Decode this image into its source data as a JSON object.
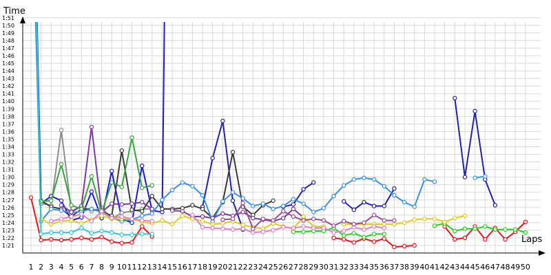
{
  "chart_data": {
    "type": "line",
    "ylabel": "Time",
    "xlabel": "Laps",
    "x": [
      1,
      2,
      3,
      4,
      5,
      6,
      7,
      8,
      9,
      10,
      11,
      12,
      13,
      14,
      15,
      16,
      17,
      18,
      19,
      20,
      21,
      22,
      23,
      24,
      25,
      26,
      27,
      28,
      29,
      30,
      31,
      32,
      33,
      34,
      35,
      36,
      37,
      38,
      39,
      40,
      41,
      42,
      43,
      44,
      45,
      46,
      47,
      48,
      49,
      50
    ],
    "y_ticks_seconds": [
      81,
      82,
      83,
      84,
      85,
      86,
      87,
      88,
      89,
      90,
      91,
      92,
      93,
      94,
      95,
      96,
      97,
      98,
      99,
      100,
      101,
      102,
      103,
      104,
      105,
      106,
      107,
      108,
      109,
      110,
      111
    ],
    "y_tick_labels": [
      "1:21",
      "1:22",
      "1:23",
      "1:24",
      "1:25",
      "1:26",
      "1:27",
      "1:28",
      "1:29",
      "1:30",
      "1:31",
      "1:32",
      "1:33",
      "1:34",
      "1:35",
      "1:36",
      "1:37",
      "1:38",
      "1:39",
      "1:40",
      "1:41",
      "1:42",
      "1:43",
      "1:44",
      "1:45",
      "1:46",
      "1:47",
      "1:48",
      "1:49",
      "1:50",
      "1:51"
    ],
    "ylim_seconds": [
      80,
      114
    ],
    "grid": true,
    "series": [
      {
        "color": "#e8141b",
        "values": [
          87.3,
          81.7,
          81.8,
          81.7,
          81.8,
          82,
          81.8,
          82.1,
          81.5,
          81.3,
          81.4,
          83.5,
          82.2,
          null,
          null,
          null,
          null,
          null,
          null,
          null,
          null,
          null,
          null,
          null,
          null,
          null,
          null,
          null,
          null,
          null,
          82,
          81.8,
          81.4,
          81.9,
          81.5,
          81.9,
          80.8,
          80.9,
          81,
          null,
          null,
          83.5,
          81.8,
          82,
          83.5,
          81.8,
          83.3,
          81.8,
          82.8,
          84.1
        ]
      },
      {
        "color": "#1a1ad6",
        "values": [
          147,
          86.5,
          87.5,
          86.9,
          84.3,
          84.7,
          88.1,
          84.6,
          90.8,
          84.5,
          84,
          91.5,
          85.6,
          85.4,
          200,
          null,
          null,
          null,
          null,
          null,
          null,
          null,
          null,
          null,
          null,
          null,
          null,
          null,
          null,
          null,
          null,
          null,
          null,
          null,
          null,
          null,
          null,
          null,
          null,
          null,
          null,
          null,
          null,
          null,
          null,
          null,
          null,
          null,
          null,
          null
        ]
      },
      {
        "color": "#2020a8",
        "values": [
          null,
          null,
          null,
          null,
          null,
          null,
          null,
          null,
          null,
          null,
          null,
          null,
          null,
          null,
          null,
          null,
          null,
          86.1,
          92.5,
          97.4,
          86.9,
          83.1,
          null,
          null,
          null,
          86.1,
          86.4,
          88.4,
          89.3,
          null,
          null,
          86.8,
          85.7,
          86.7,
          86.2,
          86.2,
          88.5,
          null,
          null,
          null,
          null,
          null,
          100.4,
          90,
          98.7,
          89.7,
          86.3,
          null,
          null,
          null
        ]
      },
      {
        "color": "#8e8e8e",
        "values": [
          null,
          86.5,
          86.3,
          96.2,
          85.5,
          86.2,
          85.5,
          86,
          84.5,
          85.3,
          85.5,
          85.8,
          85.8,
          null,
          null,
          null,
          null,
          null,
          null,
          null,
          null,
          null,
          null,
          null,
          null,
          null,
          null,
          null,
          null,
          null,
          null,
          null,
          null,
          null,
          null,
          null,
          null,
          null,
          null,
          null,
          null,
          null,
          null,
          null,
          null,
          null,
          null,
          null,
          null,
          null
        ]
      },
      {
        "color": "#3a3a3a",
        "values": [
          137,
          86.9,
          86.1,
          85.8,
          84.8,
          85.8,
          85.8,
          85.5,
          84.9,
          93.5,
          85.7,
          85.5,
          87.5,
          85.8,
          85.8,
          85.9,
          86.3,
          85.8,
          84.6,
          86.7,
          93.3,
          86.1,
          85,
          86.3,
          86.9,
          null,
          null,
          null,
          null,
          null,
          null,
          null,
          null,
          null,
          null,
          null,
          null,
          null,
          null,
          null,
          null,
          null,
          null,
          null,
          null,
          null,
          null,
          null,
          null,
          null
        ]
      },
      {
        "color": "#3a8fe6",
        "values": [
          133.2,
          84.2,
          85.8,
          85.6,
          85.3,
          85.5,
          85.8,
          85.4,
          84.6,
          84.2,
          84.4,
          84.9,
          85.2,
          87,
          88.3,
          89.3,
          88.8,
          87.6,
          84.2,
          86.8,
          88,
          87.2,
          86.2,
          86.5,
          85.8,
          86.2,
          87.1,
          86.5,
          85.4,
          85.9,
          87.5,
          88.9,
          89.7,
          89.9,
          89.7,
          88.8,
          87.6,
          86.7,
          86.1,
          89.7,
          89.4,
          null,
          null,
          null,
          89.9,
          90.1,
          null,
          null,
          null,
          null
        ]
      },
      {
        "color": "#7a3aa0",
        "values": [
          null,
          null,
          null,
          86.3,
          85.4,
          86.2,
          96.6,
          85.4,
          86.5,
          86.4,
          86.5,
          86.7,
          85.8,
          null,
          85.6,
          85.5,
          84.8,
          84.8,
          84.6,
          85.2,
          84.9,
          85.4,
          84.6,
          84.4,
          84.2,
          84.6,
          85.8,
          84.7,
          null,
          null,
          null,
          null,
          null,
          null,
          null,
          null,
          null,
          null,
          null,
          null,
          null,
          null,
          null,
          null,
          null,
          null,
          null,
          null,
          null,
          null
        ]
      },
      {
        "color": "#39a539",
        "values": [
          null,
          86.8,
          86.9,
          91.7,
          86.3,
          85.8,
          90.1,
          85.3,
          89.3,
          88.7,
          95.2,
          88.6,
          88.9,
          null,
          null,
          null,
          null,
          null,
          null,
          null,
          null,
          null,
          null,
          null,
          null,
          null,
          null,
          null,
          null,
          null,
          null,
          null,
          null,
          null,
          null,
          null,
          null,
          null,
          null,
          null,
          null,
          null,
          null,
          null,
          null,
          null,
          null,
          null,
          null,
          null
        ]
      },
      {
        "color": "#1ed21e",
        "values": [
          null,
          null,
          null,
          null,
          null,
          null,
          null,
          null,
          null,
          null,
          null,
          null,
          null,
          null,
          null,
          null,
          null,
          null,
          null,
          null,
          null,
          null,
          null,
          null,
          null,
          null,
          82.8,
          82.8,
          82.9,
          82.9,
          83.3,
          82.3,
          82.6,
          82.1,
          82.5,
          82.5,
          null,
          null,
          null,
          null,
          83.6,
          83.9,
          82.9,
          83.2,
          83.2,
          83.5,
          83.1,
          83.1,
          83.1,
          82.7
        ]
      },
      {
        "color": "#e0c81c",
        "values": [
          null,
          84.5,
          83.8,
          84.2,
          84.3,
          83.9,
          84.4,
          84.9,
          84.5,
          84.5,
          84.5,
          84.1,
          83.9,
          84.3,
          83.8,
          84.9,
          84.5,
          84.2,
          83.8,
          83.9,
          84.2,
          83.7,
          83.4,
          83.2,
          83.9,
          83.5,
          83.2,
          84.8,
          83.5,
          83.5,
          null,
          83.8,
          83.8,
          83.8,
          83.8,
          83.8,
          83.8,
          84,
          84.4,
          84.5,
          84.5,
          84.1,
          84.6,
          84.9,
          null,
          null,
          null,
          null,
          null,
          null
        ]
      },
      {
        "color": "#e07fc6",
        "values": [
          null,
          null,
          84.2,
          84.5,
          84.8,
          85.1,
          84.2,
          85.5,
          84.6,
          84.8,
          84.5,
          84.3,
          84.2,
          null,
          null,
          null,
          85,
          83.4,
          83.3,
          83.2,
          83.1,
          83.2,
          82.7,
          82.8,
          83,
          83.4,
          83.3,
          83.5,
          83.3,
          83.3,
          82.7,
          82.9,
          83.4,
          83.1,
          83.5,
          83.3,
          null,
          null,
          null,
          null,
          null,
          null,
          null,
          null,
          null,
          null,
          null,
          null,
          null,
          null
        ]
      },
      {
        "color": "#2ec8cc",
        "values": [
          148,
          82.5,
          82.7,
          82.7,
          82.7,
          83.3,
          82.6,
          82.9,
          82.7,
          82.4,
          82.4,
          82.5,
          82.5,
          null,
          null,
          null,
          null,
          null,
          null,
          null,
          null,
          null,
          null,
          null,
          null,
          null,
          null,
          null,
          null,
          null,
          null,
          null,
          null,
          null,
          null,
          null,
          null,
          null,
          null,
          null,
          null,
          null,
          null,
          null,
          null,
          null,
          null,
          null,
          null,
          null
        ]
      },
      {
        "color": "#9a4a9a",
        "values": [
          null,
          null,
          null,
          null,
          null,
          null,
          null,
          null,
          null,
          null,
          null,
          null,
          null,
          null,
          null,
          null,
          null,
          null,
          null,
          84.4,
          84.5,
          86.6,
          83.2,
          84.5,
          84.3,
          85.5,
          84.8,
          84.3,
          84.5,
          84.3,
          83.6,
          84.2,
          83.8,
          84,
          85,
          84.3,
          84.3,
          null,
          null,
          null,
          null,
          null,
          null,
          null,
          null,
          null,
          null,
          null,
          null,
          null
        ]
      }
    ]
  }
}
